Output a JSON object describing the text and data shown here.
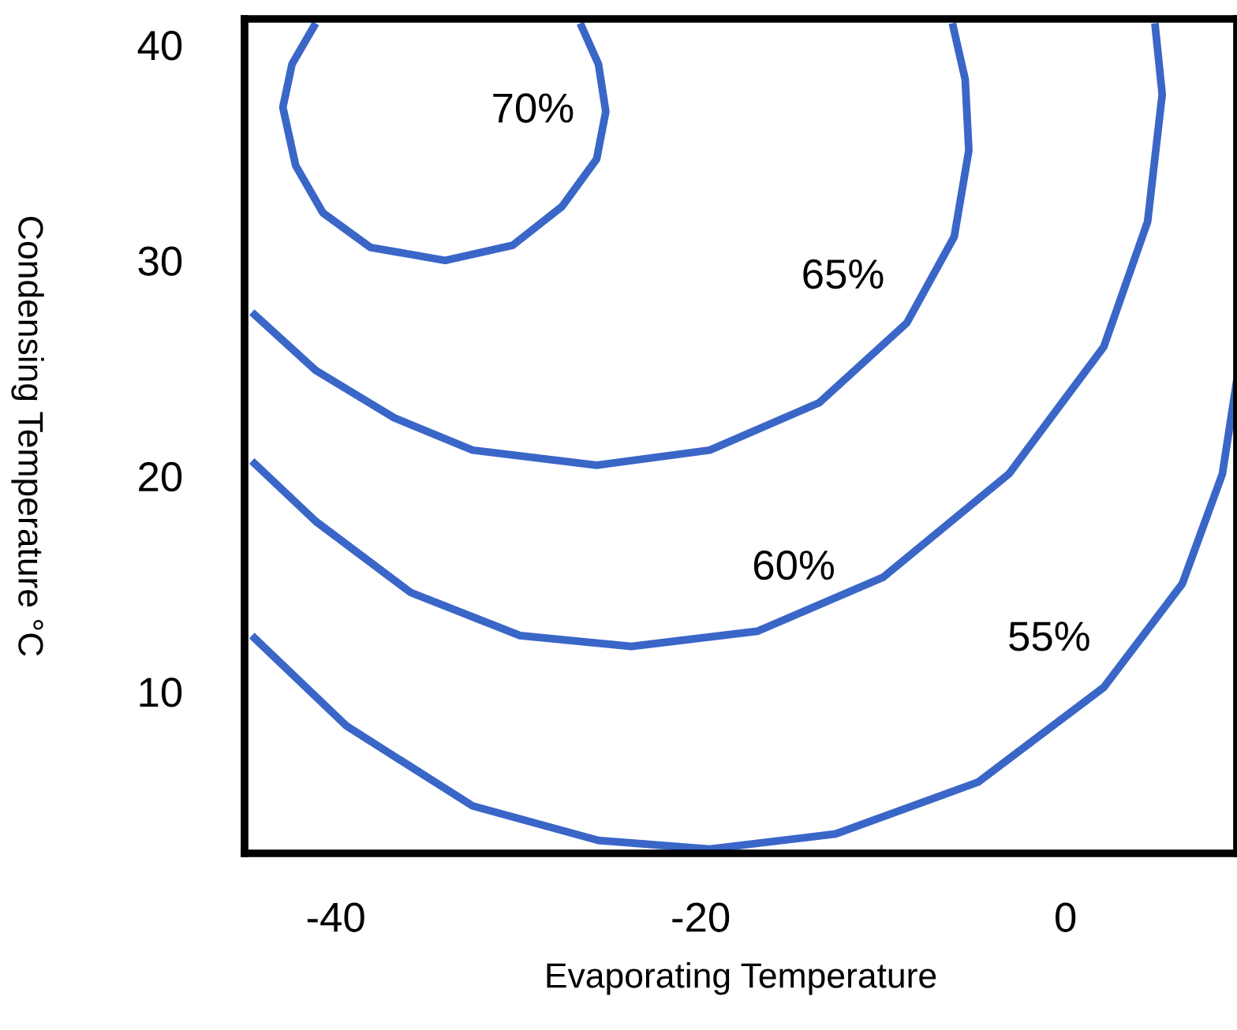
{
  "chart_data": {
    "type": "line",
    "xlabel": "Evaporating Temperature",
    "ylabel": "Condensing Temperature °C",
    "xlim": [
      -45,
      9.4
    ],
    "ylim": [
      2.5,
      41.2
    ],
    "xticks": [
      -40,
      -20,
      0
    ],
    "yticks": [
      10,
      20,
      30,
      40
    ],
    "grid": false,
    "legend": false,
    "marker": "none",
    "line_style": "solid",
    "series": [
      {
        "name": "70%",
        "color": "#3a66c8",
        "x": [
          -41.1,
          -42.4,
          -42.9,
          -42.2,
          -40.7,
          -38.1,
          -34.0,
          -30.3,
          -27.6,
          -25.7,
          -25.2,
          -25.6,
          -26.6
        ],
        "values": [
          41.0,
          39.1,
          37.1,
          34.4,
          32.2,
          30.6,
          30.0,
          30.7,
          32.5,
          34.7,
          36.9,
          39.1,
          41.0
        ]
      },
      {
        "name": "65%",
        "color": "#3a66c8",
        "x": [
          -44.6,
          -41.1,
          -36.8,
          -32.5,
          -25.7,
          -19.5,
          -13.5,
          -8.7,
          -6.1,
          -5.3,
          -5.5,
          -6.2
        ],
        "values": [
          27.6,
          24.9,
          22.7,
          21.2,
          20.5,
          21.2,
          23.4,
          27.1,
          31.1,
          35.1,
          38.4,
          41.0
        ]
      },
      {
        "name": "60%",
        "color": "#3a66c8",
        "x": [
          -44.6,
          -41.1,
          -35.9,
          -29.9,
          -23.8,
          -16.9,
          -10.0,
          -3.1,
          2.1,
          4.5,
          5.3,
          4.9
        ],
        "values": [
          20.7,
          17.9,
          14.6,
          12.6,
          12.1,
          12.8,
          15.3,
          20.1,
          26.0,
          31.8,
          37.7,
          41.0
        ]
      },
      {
        "name": "55%",
        "color": "#3a66c8",
        "x": [
          -44.6,
          -39.4,
          -32.5,
          -25.6,
          -19.5,
          -12.6,
          -4.8,
          2.1,
          6.4,
          8.6,
          9.4
        ],
        "values": [
          12.6,
          8.4,
          4.7,
          3.1,
          2.7,
          3.4,
          5.8,
          10.2,
          15.0,
          20.1,
          24.5
        ]
      }
    ]
  }
}
